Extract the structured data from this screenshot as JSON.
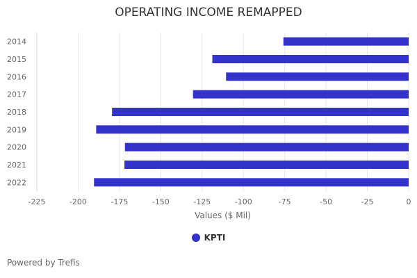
{
  "chart_data": {
    "type": "bar",
    "orientation": "horizontal",
    "title": "OPERATING INCOME REMAPPED",
    "xlabel": "Values ($ Mil)",
    "ylabel": "",
    "categories": [
      "2014",
      "2015",
      "2016",
      "2017",
      "2018",
      "2019",
      "2020",
      "2021",
      "2022"
    ],
    "series": [
      {
        "name": "KPTI",
        "values": [
          -75.8,
          -118.8,
          -110.5,
          -130.5,
          -179.5,
          -189.1,
          -171.7,
          -172.0,
          -190.4
        ],
        "color": "#3333cc"
      }
    ],
    "xlim": [
      -225,
      0
    ],
    "xticks": [
      -225,
      -200,
      -175,
      -150,
      -125,
      -100,
      -75,
      -50,
      -25,
      0
    ],
    "grid": true,
    "legend_position": "bottom"
  },
  "footer": {
    "credit": "Powered by Trefis"
  }
}
